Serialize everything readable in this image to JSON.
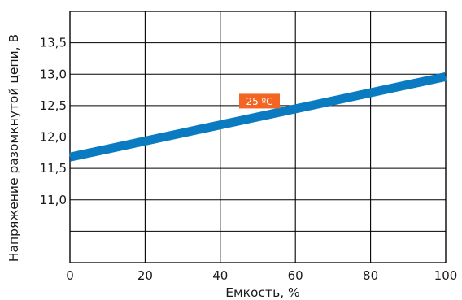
{
  "chart_data": {
    "type": "line",
    "title": "",
    "xlabel": "Емкость, %",
    "ylabel": "Напряжение разомкнутой цепи, В",
    "xlim": [
      0,
      100
    ],
    "ylim": [
      10.0,
      14.0
    ],
    "x_ticks": [
      0,
      20,
      40,
      60,
      80,
      100
    ],
    "x_tick_labels": [
      "0",
      "20",
      "40",
      "60",
      "80",
      "100"
    ],
    "y_ticks": [
      11.0,
      11.5,
      12.0,
      12.5,
      13.0,
      13.5
    ],
    "y_tick_labels": [
      "11,0",
      "11,5",
      "12,0",
      "12,5",
      "13,0",
      "13,5"
    ],
    "grid": true,
    "series": [
      {
        "x": [
          0,
          100
        ],
        "y": [
          11.68,
          12.96
        ],
        "color": "#0a7bc1"
      }
    ],
    "annotations": [
      {
        "text": "25 ºC",
        "x": 50,
        "y": 12.7,
        "background": "#f26522",
        "color": "#ffffff"
      }
    ]
  }
}
